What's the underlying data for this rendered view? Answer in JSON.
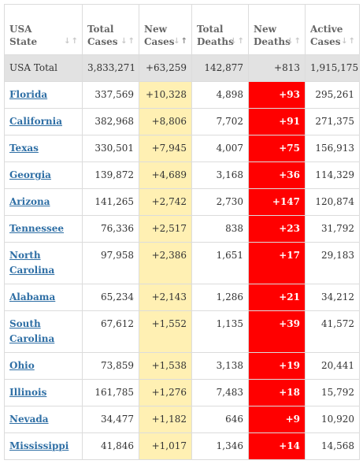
{
  "headers": [
    {
      "line1": "USA",
      "line2": "State",
      "sorted": false
    },
    {
      "line1": "Total",
      "line2": "Cases",
      "sorted": false
    },
    {
      "line1": "New",
      "line2": "Cases",
      "sorted": true
    },
    {
      "line1": "Total",
      "line2": "Deaths",
      "sorted": false
    },
    {
      "line1": "New",
      "line2": "Deaths",
      "sorted": false
    },
    {
      "line1": "Active",
      "line2": "Cases",
      "sorted": false
    }
  ],
  "sort_glyphs": {
    "up": "↓",
    "down": "↑"
  },
  "total": {
    "state": "USA Total",
    "total_cases": "3,833,271",
    "new_cases": "+63,259",
    "total_deaths": "142,877",
    "new_deaths": "+813",
    "active_cases": "1,915,175"
  },
  "rows": [
    {
      "state": "Florida",
      "total_cases": "337,569",
      "new_cases": "+10,328",
      "total_deaths": "4,898",
      "new_deaths": "+93",
      "active_cases": "295,261",
      "lines": 1
    },
    {
      "state": "California",
      "total_cases": "382,968",
      "new_cases": "+8,806",
      "total_deaths": "7,702",
      "new_deaths": "+91",
      "active_cases": "271,375",
      "lines": 1
    },
    {
      "state": "Texas",
      "total_cases": "330,501",
      "new_cases": "+7,945",
      "total_deaths": "4,007",
      "new_deaths": "+75",
      "active_cases": "156,913",
      "lines": 1
    },
    {
      "state": "Georgia",
      "total_cases": "139,872",
      "new_cases": "+4,689",
      "total_deaths": "3,168",
      "new_deaths": "+36",
      "active_cases": "114,329",
      "lines": 1
    },
    {
      "state": "Arizona",
      "total_cases": "141,265",
      "new_cases": "+2,742",
      "total_deaths": "2,730",
      "new_deaths": "+147",
      "active_cases": "120,874",
      "lines": 1
    },
    {
      "state": "Tennessee",
      "total_cases": "76,336",
      "new_cases": "+2,517",
      "total_deaths": "838",
      "new_deaths": "+23",
      "active_cases": "31,792",
      "lines": 1
    },
    {
      "state": "North Carolina",
      "total_cases": "97,958",
      "new_cases": "+2,386",
      "total_deaths": "1,651",
      "new_deaths": "+17",
      "active_cases": "29,183",
      "lines": 2
    },
    {
      "state": "Alabama",
      "total_cases": "65,234",
      "new_cases": "+2,143",
      "total_deaths": "1,286",
      "new_deaths": "+21",
      "active_cases": "34,212",
      "lines": 1
    },
    {
      "state": "South Carolina",
      "total_cases": "67,612",
      "new_cases": "+1,552",
      "total_deaths": "1,135",
      "new_deaths": "+39",
      "active_cases": "41,572",
      "lines": 2
    },
    {
      "state": "Ohio",
      "total_cases": "73,859",
      "new_cases": "+1,538",
      "total_deaths": "3,138",
      "new_deaths": "+19",
      "active_cases": "20,441",
      "lines": 1
    },
    {
      "state": "Illinois",
      "total_cases": "161,785",
      "new_cases": "+1,276",
      "total_deaths": "7,483",
      "new_deaths": "+18",
      "active_cases": "15,792",
      "lines": 1
    },
    {
      "state": "Nevada",
      "total_cases": "34,477",
      "new_cases": "+1,182",
      "total_deaths": "646",
      "new_deaths": "+9",
      "active_cases": "10,920",
      "lines": 1
    },
    {
      "state": "Mississippi",
      "total_cases": "41,846",
      "new_cases": "+1,017",
      "total_deaths": "1,346",
      "new_deaths": "+14",
      "active_cases": "14,568",
      "lines": 1
    }
  ],
  "colors": {
    "new_cases_bg": "#fff0b3",
    "new_deaths_bg": "#ff0000",
    "total_row_bg": "#e2e2e2",
    "link": "#2f6fa5"
  }
}
